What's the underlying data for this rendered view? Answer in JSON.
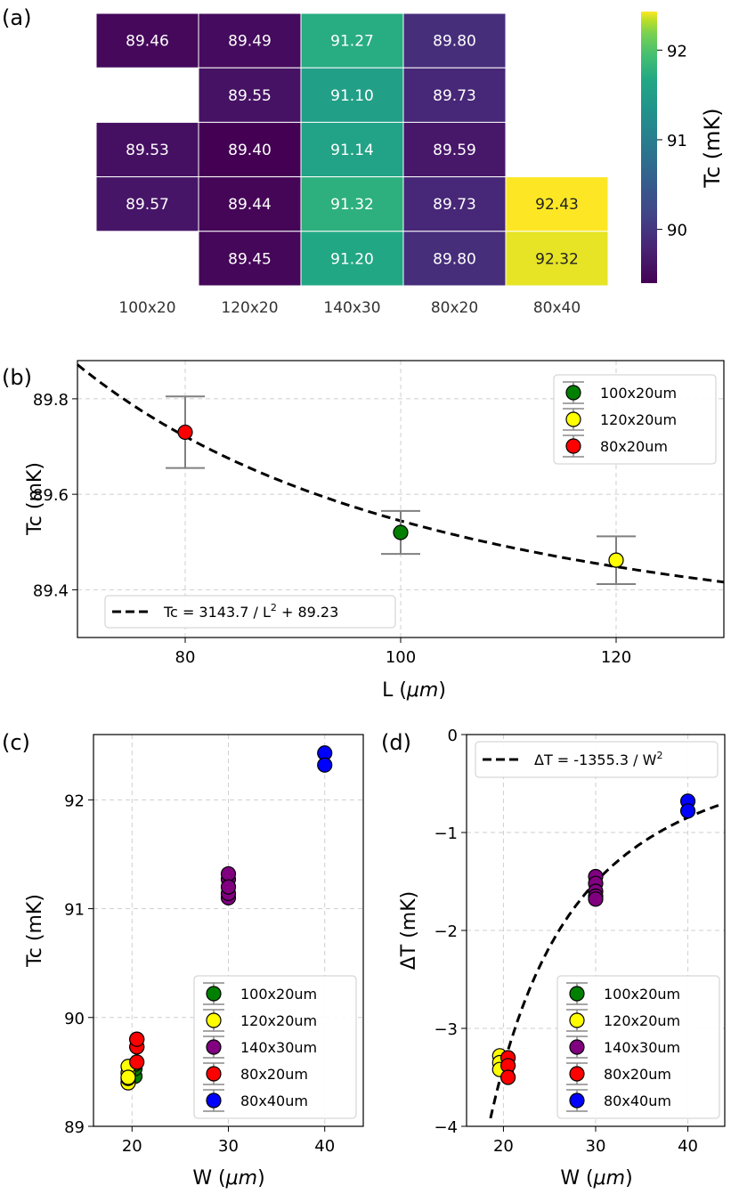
{
  "chart_data": [
    {
      "panel_label": "(a)",
      "type": "heatmap",
      "columns": [
        "100x20",
        "120x20",
        "140x30",
        "80x20",
        "80x40"
      ],
      "cells": [
        [
          "89.46",
          "89.49",
          "91.27",
          "89.80",
          null
        ],
        [
          null,
          "89.55",
          "91.10",
          "89.73",
          null
        ],
        [
          "89.53",
          "89.40",
          "91.14",
          "89.59",
          null
        ],
        [
          "89.57",
          "89.44",
          "91.32",
          "89.73",
          "92.43"
        ],
        [
          null,
          "89.45",
          "91.20",
          "89.80",
          "92.32"
        ]
      ],
      "colorbar": {
        "label": "Tc (mK)",
        "range": [
          89.4,
          92.43
        ],
        "ticks": [
          90,
          91,
          92
        ],
        "tick_labels": [
          "90",
          "91",
          "92"
        ]
      }
    },
    {
      "panel_label": "(b)",
      "type": "scatter",
      "xlabel_main": "L (",
      "xlabel_unit": "μm",
      "xlabel_close": ")",
      "ylabel": "Tc (mK)",
      "xlim": [
        70,
        130
      ],
      "ylim": [
        89.3,
        89.88
      ],
      "xticks": [
        80,
        100,
        120
      ],
      "xtick_labels": [
        "80",
        "100",
        "120"
      ],
      "yticks": [
        89.4,
        89.6,
        89.8
      ],
      "ytick_labels": [
        "89.4",
        "89.6",
        "89.8"
      ],
      "series": [
        {
          "name": "100x20um",
          "color": "#008000",
          "x": 100,
          "y": 89.52,
          "err": 0.045
        },
        {
          "name": "120x20um",
          "color": "#ffff00",
          "x": 120,
          "y": 89.462,
          "err": 0.05
        },
        {
          "name": "80x20um",
          "color": "#ff0000",
          "x": 80,
          "y": 89.73,
          "err": 0.075
        }
      ],
      "fit": {
        "a": 3143.7,
        "b": 89.23,
        "label_pre": "Tc = 3143.7 / L",
        "label_sup": "2",
        "label_post": " + 89.23"
      }
    },
    {
      "panel_label": "(c)",
      "type": "scatter",
      "xlabel_main": "W (",
      "xlabel_unit": "μm",
      "xlabel_close": ")",
      "ylabel": "Tc (mK)",
      "xlim": [
        16,
        44
      ],
      "ylim": [
        89,
        92.6
      ],
      "xticks": [
        20,
        30,
        40
      ],
      "xtick_labels": [
        "20",
        "30",
        "40"
      ],
      "yticks": [
        89,
        90,
        91,
        92
      ],
      "ytick_labels": [
        "89",
        "90",
        "91",
        "92"
      ],
      "series": [
        {
          "name": "100x20um",
          "color": "#008000",
          "x": 20.3,
          "y": [
            89.46,
            89.53,
            89.57
          ]
        },
        {
          "name": "120x20um",
          "color": "#ffff00",
          "x": 19.6,
          "y": [
            89.49,
            89.55,
            89.4,
            89.44,
            89.45
          ]
        },
        {
          "name": "140x30um",
          "color": "#800080",
          "x": 30,
          "y": [
            91.27,
            91.1,
            91.14,
            91.32,
            91.2
          ]
        },
        {
          "name": "80x20um",
          "color": "#ff0000",
          "x": 20.5,
          "y": [
            89.8,
            89.73,
            89.59,
            89.73,
            89.8
          ]
        },
        {
          "name": "80x40um",
          "color": "#0000ff",
          "x": 40,
          "y": [
            92.43,
            92.32
          ]
        }
      ]
    },
    {
      "panel_label": "(d)",
      "type": "scatter",
      "xlabel_main": "W (",
      "xlabel_unit": "μm",
      "xlabel_close": ")",
      "ylabel": "ΔT (mK)",
      "xlim": [
        16,
        44
      ],
      "ylim": [
        -4,
        0
      ],
      "xticks": [
        20,
        30,
        40
      ],
      "xtick_labels": [
        "20",
        "30",
        "40"
      ],
      "yticks": [
        -4,
        -3,
        -2,
        -1,
        0
      ],
      "ytick_labels": [
        "−4",
        "−3",
        "−2",
        "−1",
        "0"
      ],
      "series": [
        {
          "name": "100x20um",
          "color": "#008000",
          "x": 20.3,
          "y": [
            -3.45,
            -3.38,
            -3.35
          ]
        },
        {
          "name": "120x20um",
          "color": "#ffff00",
          "x": 19.6,
          "y": [
            -3.28,
            -3.35,
            -3.42
          ]
        },
        {
          "name": "140x30um",
          "color": "#800080",
          "x": 30,
          "y": [
            -1.45,
            -1.52,
            -1.6,
            -1.65,
            -1.68
          ]
        },
        {
          "name": "80x20um",
          "color": "#ff0000",
          "x": 20.5,
          "y": [
            -3.3,
            -3.38,
            -3.5
          ]
        },
        {
          "name": "80x40um",
          "color": "#0000ff",
          "x": 40,
          "y": [
            -0.68,
            -0.78
          ]
        }
      ],
      "fit": {
        "a": -1355.3,
        "label_pre": "ΔT = -1355.3 / W",
        "label_sup": "2",
        "label_post": ""
      }
    }
  ]
}
